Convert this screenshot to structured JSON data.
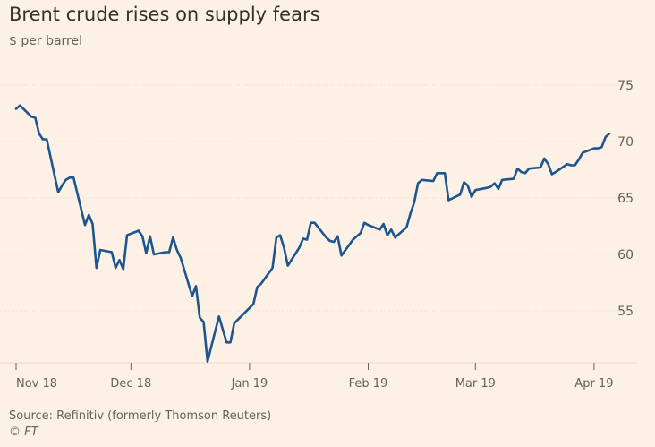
{
  "header": {
    "title": "Brent crude rises on supply fears",
    "subtitle": "$ per barrel"
  },
  "footer": {
    "source": "Source: Refinitiv (formerly Thomson Reuters)",
    "credit": "© FT"
  },
  "colors": {
    "background": "#FDF1E6",
    "line": "#1E558C",
    "grid": "#E6D9CE",
    "axis": "#66605C"
  },
  "chart_data": {
    "type": "line",
    "title": "Brent crude rises on supply fears",
    "subtitle": "$ per barrel",
    "xlabel": "",
    "ylabel": "$ per barrel",
    "ylim": [
      50,
      75
    ],
    "y_ticks": [
      55,
      60,
      65,
      70,
      75
    ],
    "x_ticks": [
      {
        "label": "Nov 18",
        "date": "2018-11-01"
      },
      {
        "label": "Dec 18",
        "date": "2018-12-01"
      },
      {
        "label": "Jan 19",
        "date": "2019-01-01"
      },
      {
        "label": "Feb 19",
        "date": "2019-02-01"
      },
      {
        "label": "Mar 19",
        "date": "2019-03-01"
      },
      {
        "label": "Apr 19",
        "date": "2019-04-01"
      }
    ],
    "y_axis_position": "right",
    "grid": "horizontal",
    "series": [
      {
        "color": "#1E558C",
        "points": [
          [
            "2018-11-01",
            72.9
          ],
          [
            "2018-11-02",
            73.2
          ],
          [
            "2018-11-05",
            72.2
          ],
          [
            "2018-11-06",
            72.1
          ],
          [
            "2018-11-07",
            70.7
          ],
          [
            "2018-11-08",
            70.2
          ],
          [
            "2018-11-09",
            70.2
          ],
          [
            "2018-11-12",
            65.5
          ],
          [
            "2018-11-13",
            66.1
          ],
          [
            "2018-11-14",
            66.6
          ],
          [
            "2018-11-15",
            66.8
          ],
          [
            "2018-11-16",
            66.8
          ],
          [
            "2018-11-19",
            62.6
          ],
          [
            "2018-11-20",
            63.5
          ],
          [
            "2018-11-21",
            62.7
          ],
          [
            "2018-11-22",
            58.8
          ],
          [
            "2018-11-23",
            60.4
          ],
          [
            "2018-11-26",
            60.2
          ],
          [
            "2018-11-27",
            58.8
          ],
          [
            "2018-11-28",
            59.5
          ],
          [
            "2018-11-29",
            58.7
          ],
          [
            "2018-11-30",
            61.7
          ],
          [
            "2018-12-03",
            62.1
          ],
          [
            "2018-12-04",
            61.6
          ],
          [
            "2018-12-05",
            60.1
          ],
          [
            "2018-12-06",
            61.6
          ],
          [
            "2018-12-07",
            60.0
          ],
          [
            "2018-12-10",
            60.2
          ],
          [
            "2018-12-11",
            60.2
          ],
          [
            "2018-12-12",
            61.5
          ],
          [
            "2018-12-13",
            60.4
          ],
          [
            "2018-12-14",
            59.7
          ],
          [
            "2018-12-17",
            56.3
          ],
          [
            "2018-12-18",
            57.2
          ],
          [
            "2018-12-19",
            54.4
          ],
          [
            "2018-12-20",
            54.0
          ],
          [
            "2018-12-21",
            50.5
          ],
          [
            "2018-12-24",
            54.5
          ],
          [
            "2018-12-26",
            52.2
          ],
          [
            "2018-12-27",
            52.2
          ],
          [
            "2018-12-28",
            53.9
          ],
          [
            "2019-01-02",
            55.6
          ],
          [
            "2019-01-03",
            57.1
          ],
          [
            "2019-01-04",
            57.4
          ],
          [
            "2019-01-07",
            58.8
          ],
          [
            "2019-01-08",
            61.5
          ],
          [
            "2019-01-09",
            61.7
          ],
          [
            "2019-01-10",
            60.6
          ],
          [
            "2019-01-11",
            59.0
          ],
          [
            "2019-01-14",
            60.6
          ],
          [
            "2019-01-15",
            61.4
          ],
          [
            "2019-01-16",
            61.3
          ],
          [
            "2019-01-17",
            62.8
          ],
          [
            "2019-01-18",
            62.8
          ],
          [
            "2019-01-21",
            61.5
          ],
          [
            "2019-01-22",
            61.2
          ],
          [
            "2019-01-23",
            61.1
          ],
          [
            "2019-01-24",
            61.6
          ],
          [
            "2019-01-25",
            59.9
          ],
          [
            "2019-01-28",
            61.3
          ],
          [
            "2019-01-29",
            61.6
          ],
          [
            "2019-01-30",
            61.9
          ],
          [
            "2019-01-31",
            62.8
          ],
          [
            "2019-02-01",
            62.6
          ],
          [
            "2019-02-04",
            62.2
          ],
          [
            "2019-02-05",
            62.7
          ],
          [
            "2019-02-06",
            61.7
          ],
          [
            "2019-02-07",
            62.2
          ],
          [
            "2019-02-08",
            61.5
          ],
          [
            "2019-02-11",
            62.4
          ],
          [
            "2019-02-12",
            63.6
          ],
          [
            "2019-02-13",
            64.6
          ],
          [
            "2019-02-14",
            66.3
          ],
          [
            "2019-02-15",
            66.6
          ],
          [
            "2019-02-18",
            66.5
          ],
          [
            "2019-02-19",
            67.2
          ],
          [
            "2019-02-20",
            67.2
          ],
          [
            "2019-02-21",
            67.2
          ],
          [
            "2019-02-22",
            64.8
          ],
          [
            "2019-02-25",
            65.3
          ],
          [
            "2019-02-26",
            66.4
          ],
          [
            "2019-02-27",
            66.1
          ],
          [
            "2019-02-28",
            65.1
          ],
          [
            "2019-03-01",
            65.7
          ],
          [
            "2019-03-04",
            65.9
          ],
          [
            "2019-03-05",
            66.0
          ],
          [
            "2019-03-06",
            66.3
          ],
          [
            "2019-03-07",
            65.8
          ],
          [
            "2019-03-08",
            66.6
          ],
          [
            "2019-03-11",
            66.7
          ],
          [
            "2019-03-12",
            67.6
          ],
          [
            "2019-03-13",
            67.3
          ],
          [
            "2019-03-14",
            67.2
          ],
          [
            "2019-03-15",
            67.6
          ],
          [
            "2019-03-18",
            67.7
          ],
          [
            "2019-03-19",
            68.5
          ],
          [
            "2019-03-20",
            68.0
          ],
          [
            "2019-03-21",
            67.1
          ],
          [
            "2019-03-22",
            67.3
          ],
          [
            "2019-03-25",
            68.0
          ],
          [
            "2019-03-26",
            67.9
          ],
          [
            "2019-03-27",
            67.9
          ],
          [
            "2019-03-28",
            68.4
          ],
          [
            "2019-03-29",
            69.0
          ],
          [
            "2019-04-01",
            69.4
          ],
          [
            "2019-04-02",
            69.4
          ],
          [
            "2019-04-03",
            69.5
          ],
          [
            "2019-04-04",
            70.4
          ],
          [
            "2019-04-05",
            70.7
          ]
        ]
      }
    ]
  }
}
